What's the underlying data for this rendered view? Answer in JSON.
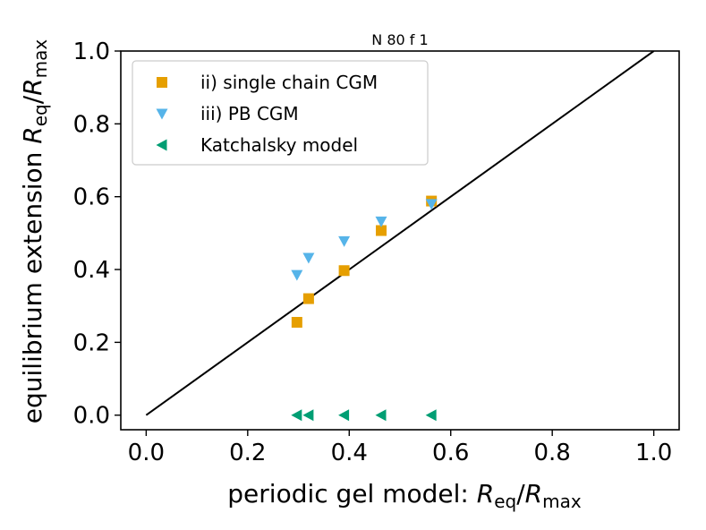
{
  "chart_data": {
    "type": "scatter",
    "title": "N 80 f 1",
    "xlabel_prefix": "periodic gel model: ",
    "ylabel_prefix": "equilibrium extension ",
    "label_symbol": "R",
    "sub_eq": "eq",
    "sub_max": "max",
    "slash": "/",
    "xlim": [
      -0.05,
      1.05
    ],
    "ylim": [
      -0.04,
      1.0
    ],
    "xticks": [
      0.0,
      0.2,
      0.4,
      0.6,
      0.8,
      1.0
    ],
    "yticks": [
      0.0,
      0.2,
      0.4,
      0.6,
      0.8,
      1.0
    ],
    "xtick_labels": [
      "0.0",
      "0.2",
      "0.4",
      "0.6",
      "0.8",
      "1.0"
    ],
    "ytick_labels": [
      "0.0",
      "0.2",
      "0.4",
      "0.6",
      "0.8",
      "1.0"
    ],
    "legend_position": "top-left",
    "reference_line": {
      "x": [
        0.0,
        1.0
      ],
      "y": [
        0.0,
        1.0
      ],
      "color": "#000000"
    },
    "series": [
      {
        "name": "ii) single chain CGM",
        "marker": "square",
        "color": "#E69F00",
        "x": [
          0.297,
          0.32,
          0.39,
          0.463,
          0.562
        ],
        "y": [
          0.255,
          0.32,
          0.397,
          0.507,
          0.588
        ]
      },
      {
        "name": "iii) PB CGM",
        "marker": "triangle-down",
        "color": "#56B4E9",
        "x": [
          0.297,
          0.32,
          0.39,
          0.463,
          0.562
        ],
        "y": [
          0.385,
          0.432,
          0.478,
          0.532,
          0.58
        ]
      },
      {
        "name": "Katchalsky model",
        "marker": "triangle-left",
        "color": "#009E73",
        "x": [
          0.297,
          0.32,
          0.39,
          0.463,
          0.562
        ],
        "y": [
          0.0,
          0.0,
          0.0,
          0.0,
          0.0
        ]
      }
    ]
  }
}
